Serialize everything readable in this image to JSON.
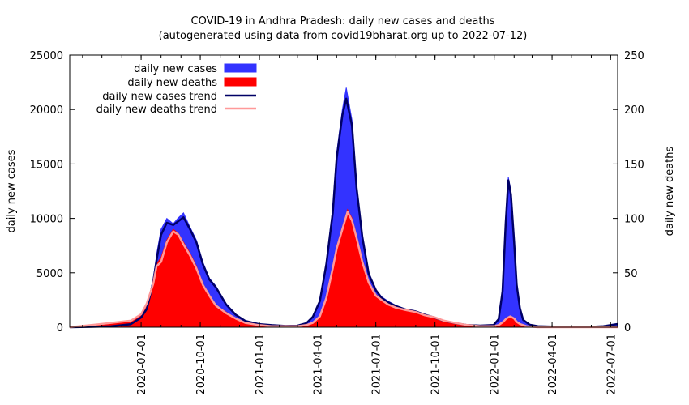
{
  "chart_data": {
    "type": "area",
    "title": "COVID-19 in Andhra Pradesh: daily new cases and deaths",
    "subtitle": "(autogenerated using data from covid19bharat.org up to 2022-07-12)",
    "ylabel": "daily new cases",
    "y2label": "daily new deaths",
    "ylim": [
      0,
      25000
    ],
    "y2lim": [
      0,
      250
    ],
    "yticks": [
      "0",
      "5000",
      "10000",
      "15000",
      "20000",
      "25000"
    ],
    "y2ticks": [
      "0",
      "50",
      "100",
      "150",
      "200",
      "250"
    ],
    "xlim": [
      "2020-03-12",
      "2022-07-12"
    ],
    "xticks": [
      "2020-07-01",
      "2020-10-01",
      "2021-01-01",
      "2021-04-01",
      "2021-07-01",
      "2021-10-01",
      "2022-01-01",
      "2022-04-01",
      "2022-07-01"
    ],
    "legend": {
      "position": "top-left",
      "entries": [
        "daily new cases",
        "daily new deaths",
        "daily new cases trend",
        "daily new deaths trend"
      ]
    },
    "colors": {
      "cases": "#3333ff",
      "deaths": "#ff0000",
      "cases_trend": "#000066",
      "deaths_trend": "#ff9999"
    },
    "series": [
      {
        "name": "daily new cases",
        "axis": "y",
        "dates": [
          "2020-03-12",
          "2020-04-15",
          "2020-05-15",
          "2020-06-15",
          "2020-07-01",
          "2020-07-10",
          "2020-07-20",
          "2020-07-26",
          "2020-08-01",
          "2020-08-10",
          "2020-08-20",
          "2020-08-27",
          "2020-09-05",
          "2020-09-15",
          "2020-09-25",
          "2020-10-05",
          "2020-10-15",
          "2020-10-25",
          "2020-11-10",
          "2020-11-25",
          "2020-12-10",
          "2020-12-31",
          "2021-01-20",
          "2021-02-10",
          "2021-03-01",
          "2021-03-15",
          "2021-03-25",
          "2021-04-05",
          "2021-04-15",
          "2021-04-25",
          "2021-05-01",
          "2021-05-10",
          "2021-05-16",
          "2021-05-25",
          "2021-06-01",
          "2021-06-10",
          "2021-06-20",
          "2021-07-01",
          "2021-07-10",
          "2021-07-20",
          "2021-08-01",
          "2021-08-15",
          "2021-09-01",
          "2021-09-15",
          "2021-10-01",
          "2021-10-15",
          "2021-11-01",
          "2021-11-20",
          "2021-12-10",
          "2021-12-31",
          "2022-01-08",
          "2022-01-14",
          "2022-01-19",
          "2022-01-23",
          "2022-01-27",
          "2022-02-01",
          "2022-02-05",
          "2022-02-10",
          "2022-02-15",
          "2022-02-25",
          "2022-03-10",
          "2022-04-01",
          "2022-05-01",
          "2022-06-01",
          "2022-06-20",
          "2022-07-12"
        ],
        "values": [
          0,
          40,
          80,
          300,
          1000,
          1800,
          4500,
          7000,
          9000,
          10000,
          9500,
          10000,
          10500,
          9200,
          8000,
          6000,
          4500,
          3800,
          2200,
          1200,
          600,
          300,
          200,
          120,
          150,
          400,
          1000,
          2500,
          6000,
          11000,
          16000,
          20000,
          22000,
          19000,
          13000,
          8500,
          5000,
          3500,
          2800,
          2400,
          2000,
          1700,
          1500,
          1200,
          900,
          600,
          400,
          200,
          150,
          200,
          800,
          3500,
          10000,
          13800,
          12500,
          8000,
          4000,
          1800,
          700,
          250,
          100,
          50,
          30,
          40,
          100,
          300
        ]
      },
      {
        "name": "daily new deaths",
        "axis": "y2",
        "dates": [
          "2020-03-12",
          "2020-04-15",
          "2020-05-15",
          "2020-06-15",
          "2020-07-01",
          "2020-07-10",
          "2020-07-20",
          "2020-07-25",
          "2020-08-01",
          "2020-08-10",
          "2020-08-20",
          "2020-08-28",
          "2020-09-05",
          "2020-09-15",
          "2020-09-25",
          "2020-10-05",
          "2020-10-15",
          "2020-10-25",
          "2020-11-10",
          "2020-11-25",
          "2020-12-10",
          "2020-12-31",
          "2021-01-20",
          "2021-02-10",
          "2021-03-01",
          "2021-03-15",
          "2021-03-25",
          "2021-04-05",
          "2021-04-15",
          "2021-04-25",
          "2021-05-01",
          "2021-05-10",
          "2021-05-18",
          "2021-05-25",
          "2021-06-01",
          "2021-06-10",
          "2021-06-20",
          "2021-07-01",
          "2021-07-10",
          "2021-07-20",
          "2021-08-01",
          "2021-08-15",
          "2021-09-01",
          "2021-09-15",
          "2021-10-01",
          "2021-10-15",
          "2021-11-01",
          "2021-11-20",
          "2021-12-10",
          "2021-12-31",
          "2022-01-08",
          "2022-01-15",
          "2022-01-20",
          "2022-01-26",
          "2022-02-01",
          "2022-02-05",
          "2022-02-10",
          "2022-02-20",
          "2022-03-10",
          "2022-04-01",
          "2022-05-01",
          "2022-06-01",
          "2022-07-12"
        ],
        "values": [
          0,
          2,
          4,
          6,
          12,
          22,
          42,
          58,
          64,
          80,
          90,
          86,
          78,
          68,
          56,
          40,
          30,
          20,
          14,
          8,
          4,
          2,
          1,
          1,
          1,
          2,
          4,
          10,
          28,
          56,
          74,
          92,
          108,
          100,
          84,
          62,
          42,
          30,
          26,
          22,
          18,
          16,
          14,
          11,
          9,
          6,
          4,
          2,
          1,
          1,
          2,
          5,
          8,
          10,
          8,
          5,
          3,
          1,
          0,
          0,
          0,
          0,
          0
        ]
      },
      {
        "name": "daily new cases trend",
        "axis": "y",
        "dates": [
          "2020-03-12",
          "2020-04-15",
          "2020-05-15",
          "2020-06-15",
          "2020-07-01",
          "2020-07-10",
          "2020-07-20",
          "2020-07-26",
          "2020-08-01",
          "2020-08-10",
          "2020-08-20",
          "2020-08-27",
          "2020-09-05",
          "2020-09-15",
          "2020-09-25",
          "2020-10-05",
          "2020-10-15",
          "2020-10-25",
          "2020-11-10",
          "2020-11-25",
          "2020-12-10",
          "2020-12-31",
          "2021-01-20",
          "2021-02-10",
          "2021-03-01",
          "2021-03-15",
          "2021-03-25",
          "2021-04-05",
          "2021-04-15",
          "2021-04-25",
          "2021-05-01",
          "2021-05-10",
          "2021-05-16",
          "2021-05-25",
          "2021-06-01",
          "2021-06-10",
          "2021-06-20",
          "2021-07-01",
          "2021-07-10",
          "2021-07-20",
          "2021-08-01",
          "2021-08-15",
          "2021-09-01",
          "2021-09-15",
          "2021-10-01",
          "2021-10-15",
          "2021-11-01",
          "2021-11-20",
          "2021-12-10",
          "2021-12-31",
          "2022-01-08",
          "2022-01-14",
          "2022-01-19",
          "2022-01-23",
          "2022-01-27",
          "2022-02-01",
          "2022-02-05",
          "2022-02-10",
          "2022-02-15",
          "2022-02-25",
          "2022-03-10",
          "2022-04-01",
          "2022-05-01",
          "2022-06-01",
          "2022-06-20",
          "2022-07-12"
        ],
        "values": [
          0,
          40,
          80,
          280,
          900,
          1700,
          4200,
          6500,
          8500,
          9600,
          9400,
          9700,
          10100,
          9000,
          7800,
          5800,
          4400,
          3700,
          2100,
          1150,
          580,
          290,
          190,
          120,
          140,
          380,
          950,
          2400,
          5800,
          10500,
          15500,
          19500,
          21000,
          18500,
          12800,
          8300,
          4900,
          3400,
          2700,
          2300,
          1950,
          1650,
          1450,
          1150,
          880,
          580,
          390,
          200,
          150,
          200,
          750,
          3300,
          9600,
          13500,
          12200,
          7800,
          3900,
          1750,
          680,
          240,
          100,
          50,
          30,
          40,
          100,
          300
        ]
      },
      {
        "name": "daily new deaths trend",
        "axis": "y2",
        "dates": [
          "2020-03-12",
          "2020-04-15",
          "2020-05-15",
          "2020-06-15",
          "2020-07-01",
          "2020-07-10",
          "2020-07-20",
          "2020-07-25",
          "2020-08-01",
          "2020-08-10",
          "2020-08-20",
          "2020-08-28",
          "2020-09-05",
          "2020-09-15",
          "2020-09-25",
          "2020-10-05",
          "2020-10-15",
          "2020-10-25",
          "2020-11-10",
          "2020-11-25",
          "2020-12-10",
          "2020-12-31",
          "2021-01-20",
          "2021-02-10",
          "2021-03-01",
          "2021-03-15",
          "2021-03-25",
          "2021-04-05",
          "2021-04-15",
          "2021-04-25",
          "2021-05-01",
          "2021-05-10",
          "2021-05-18",
          "2021-05-25",
          "2021-06-01",
          "2021-06-10",
          "2021-06-20",
          "2021-07-01",
          "2021-07-10",
          "2021-07-20",
          "2021-08-01",
          "2021-08-15",
          "2021-09-01",
          "2021-09-15",
          "2021-10-01",
          "2021-10-15",
          "2021-11-01",
          "2021-11-20",
          "2021-12-10",
          "2021-12-31",
          "2022-01-08",
          "2022-01-15",
          "2022-01-20",
          "2022-01-26",
          "2022-02-01",
          "2022-02-05",
          "2022-02-10",
          "2022-02-20",
          "2022-03-10",
          "2022-04-01",
          "2022-05-01",
          "2022-06-01",
          "2022-07-12"
        ],
        "values": [
          0,
          2,
          4,
          6,
          12,
          22,
          40,
          56,
          60,
          78,
          88,
          85,
          76,
          66,
          54,
          39,
          29,
          20,
          13,
          8,
          4,
          2,
          1,
          1,
          1,
          2,
          4,
          10,
          27,
          54,
          72,
          90,
          106,
          98,
          82,
          60,
          41,
          29,
          25,
          21,
          18,
          16,
          14,
          11,
          9,
          6,
          4,
          2,
          1,
          1,
          2,
          5,
          8,
          10,
          8,
          5,
          3,
          1,
          0,
          0,
          0,
          0,
          0
        ]
      }
    ]
  }
}
